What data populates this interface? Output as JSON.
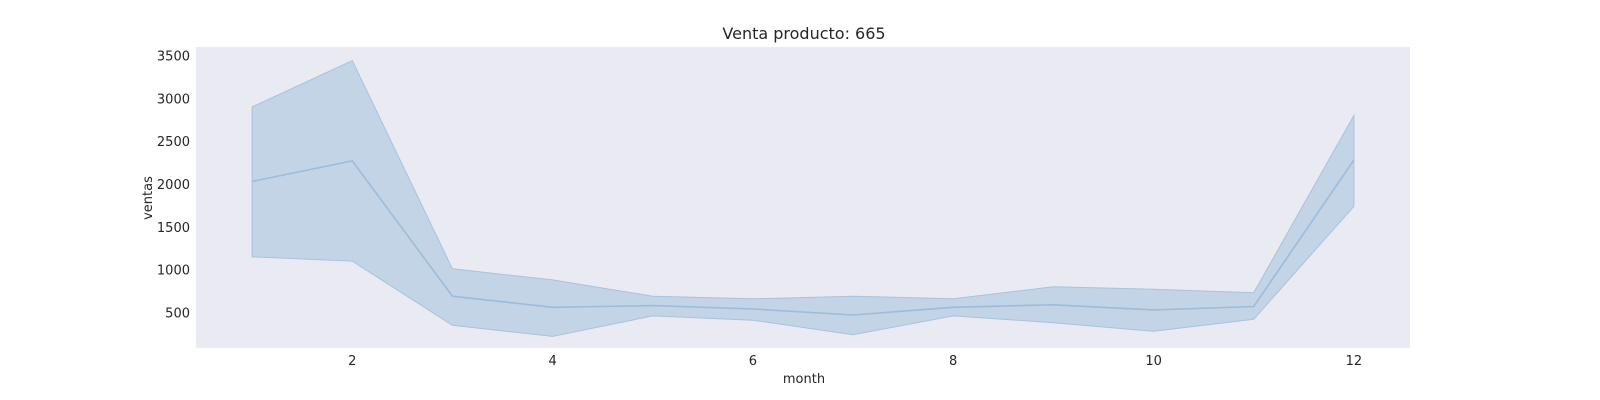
{
  "chart_data": {
    "type": "line",
    "title": "Venta producto: 665",
    "xlabel": "month",
    "ylabel": "ventas",
    "xlim": [
      0.44,
      12.56
    ],
    "ylim": [
      85,
      3600
    ],
    "xticks": [
      2,
      4,
      6,
      8,
      10,
      12
    ],
    "yticks": [
      500,
      1000,
      1500,
      2000,
      2500,
      3000,
      3500
    ],
    "grid": false,
    "colors": {
      "plot_background": "#eaeaf2",
      "line": "#9dbcd9",
      "band_fill": "#a9c4de",
      "band_edge": "#a7c3dd"
    },
    "series": [
      {
        "x": [
          1,
          2,
          3,
          4,
          5,
          6,
          7,
          8,
          9,
          10,
          11,
          12
        ],
        "y": [
          2030,
          2270,
          690,
          560,
          580,
          540,
          470,
          560,
          590,
          530,
          570,
          2280
        ],
        "lower": [
          1150,
          1100,
          350,
          220,
          460,
          410,
          240,
          460,
          380,
          280,
          420,
          1740
        ],
        "upper": [
          2900,
          3440,
          1010,
          880,
          690,
          660,
          690,
          660,
          800,
          770,
          730,
          2800
        ]
      }
    ]
  }
}
